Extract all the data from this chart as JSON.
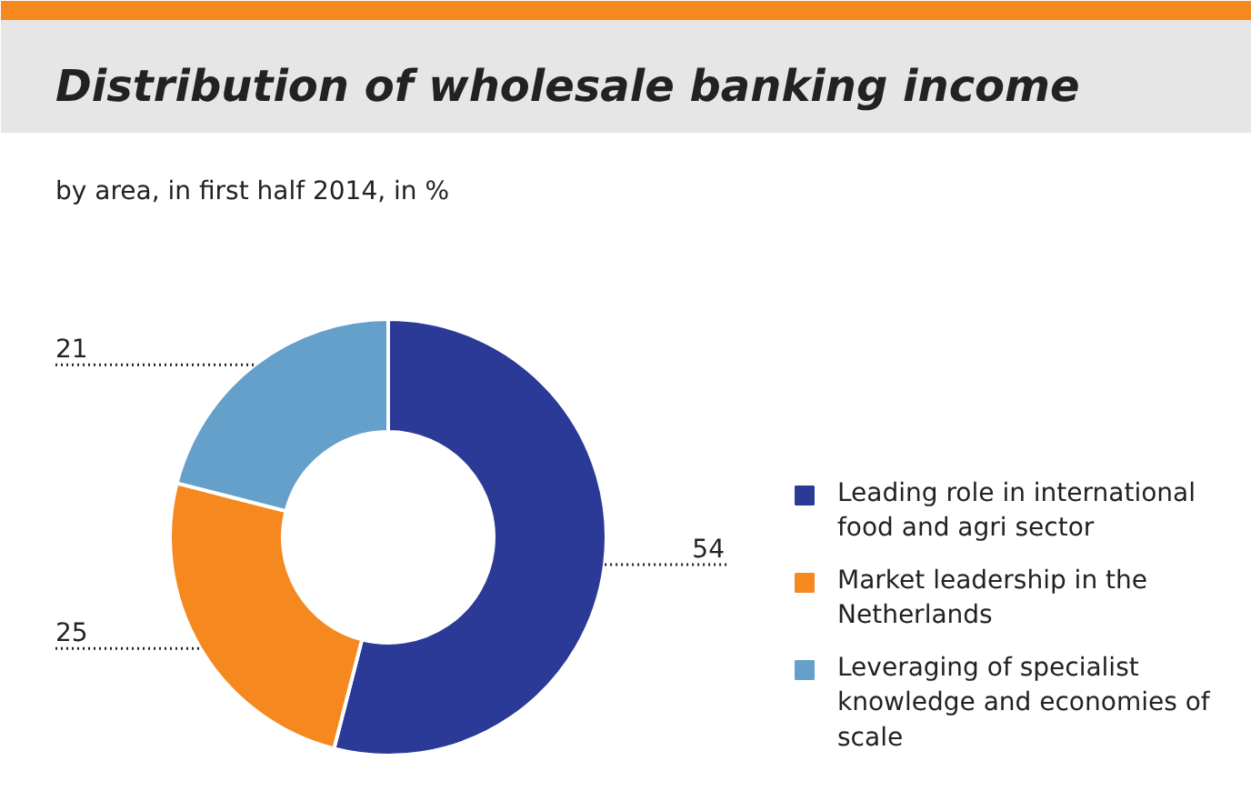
{
  "chart_data": {
    "type": "donut",
    "title": "Distribution of wholesale banking income",
    "subtitle": "by area, in first half 2014, in %",
    "categories": [
      "Leading role in international food and agri sector",
      "Market leadership in the Netherlands",
      "Leveraging of specialist knowledge and economies of scale"
    ],
    "values": [
      54,
      25,
      21
    ],
    "colors": [
      "#2b3a97",
      "#f5891f",
      "#65a0ca"
    ],
    "data_labels": true,
    "legend": "right"
  }
}
